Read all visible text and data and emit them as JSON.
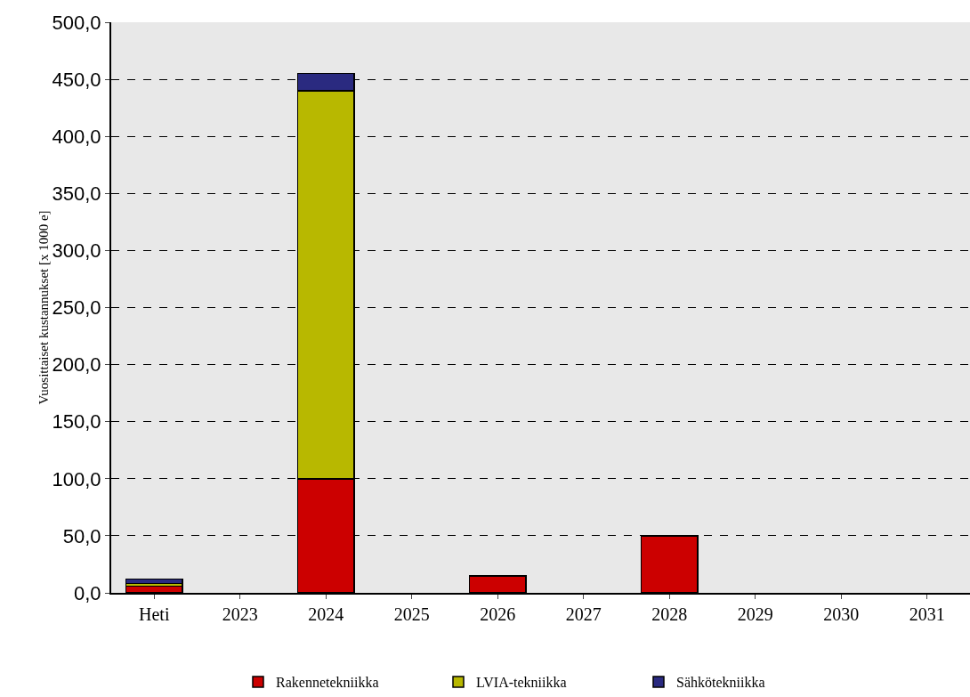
{
  "chart_data": {
    "type": "bar",
    "stacked": true,
    "ylabel": "Vuosittaiset kustannukset [x 1000 e]",
    "categories": [
      "Heti",
      "2023",
      "2024",
      "2025",
      "2026",
      "2027",
      "2028",
      "2029",
      "2030",
      "2031"
    ],
    "series": [
      {
        "name": "Rakennetekniikka",
        "color": "#cc0000",
        "values": [
          6,
          null,
          100,
          null,
          15,
          null,
          50,
          null,
          null,
          null
        ]
      },
      {
        "name": "LVIA-tekniikka",
        "color": "#b8b800",
        "values": [
          2,
          null,
          340,
          null,
          null,
          null,
          null,
          null,
          null,
          null
        ]
      },
      {
        "name": "Sähkötekniikka",
        "color": "#2a2a80",
        "values": [
          4,
          null,
          15,
          null,
          null,
          null,
          null,
          null,
          null,
          null
        ]
      }
    ],
    "ylim": [
      0,
      500
    ],
    "yticks": [
      {
        "value": 0,
        "label": "0,0"
      },
      {
        "value": 50,
        "label": "50,0"
      },
      {
        "value": 100,
        "label": "100,0"
      },
      {
        "value": 150,
        "label": "150,0"
      },
      {
        "value": 200,
        "label": "200,0"
      },
      {
        "value": 250,
        "label": "250,0"
      },
      {
        "value": 300,
        "label": "300,0"
      },
      {
        "value": 350,
        "label": "350,0"
      },
      {
        "value": 400,
        "label": "400,0"
      },
      {
        "value": 450,
        "label": "450,0"
      },
      {
        "value": 500,
        "label": "500,0"
      }
    ],
    "grid": "y",
    "legend": "bottom"
  }
}
